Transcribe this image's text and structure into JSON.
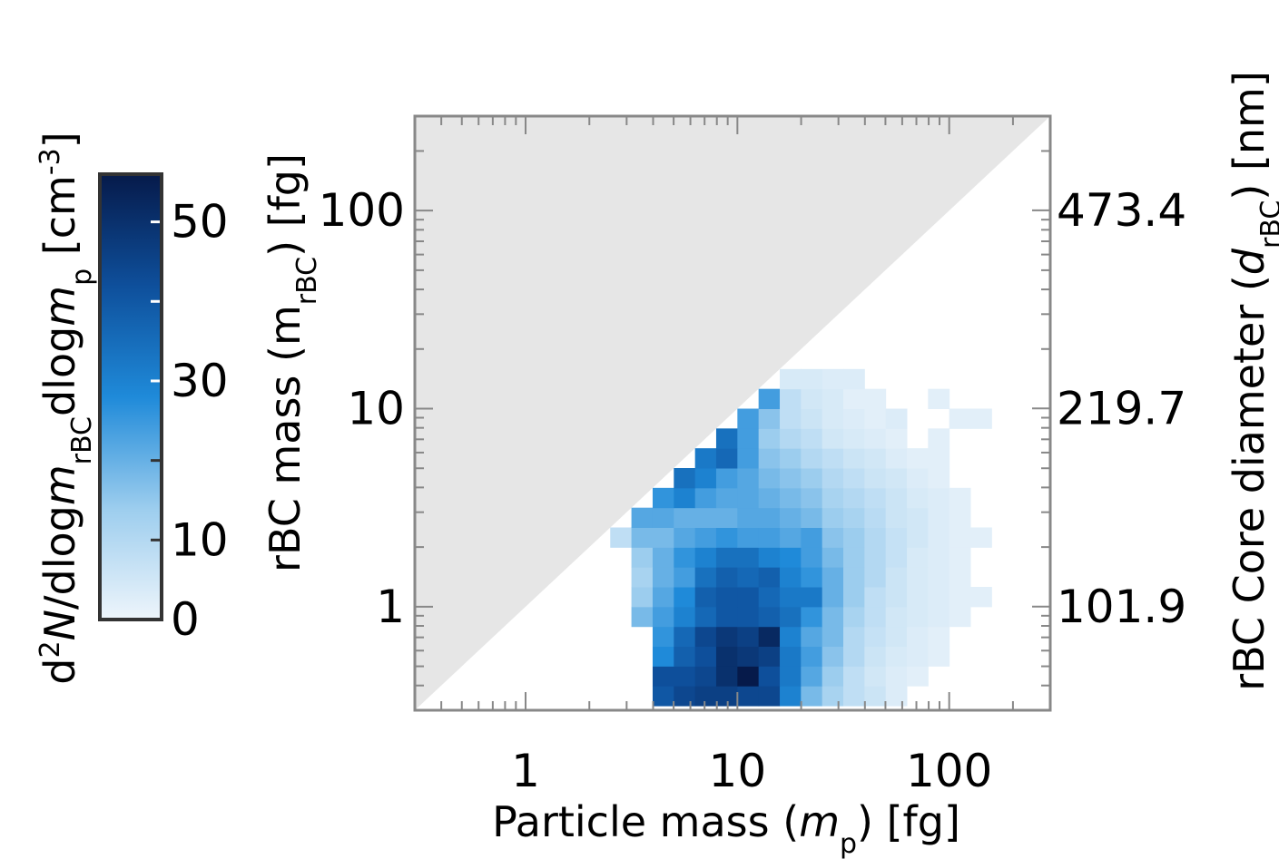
{
  "chart_data": {
    "type": "heatmap",
    "x_label": [
      "Particle mass (",
      "m",
      "p",
      ") [fg]"
    ],
    "y_label": [
      "rBC mass (m",
      "rBC",
      ") [fg]"
    ],
    "y2_label": [
      "rBC Core diameter (",
      "d",
      "rBC",
      ") [nm]"
    ],
    "colorbar_label": [
      "d",
      "2",
      "N",
      "/dlog",
      "m",
      "rBC",
      "dlog",
      "m",
      "p",
      " [cm",
      "-3",
      "]"
    ],
    "xscale": "log",
    "yscale": "log",
    "y2scale": "log",
    "xlim": [
      0.3,
      300
    ],
    "ylim": [
      0.3,
      300
    ],
    "y2lim": [
      68.2,
      682.1
    ],
    "xticks": [
      1,
      10,
      100
    ],
    "yticks": [
      1,
      10,
      100
    ],
    "y2ticks": [
      101.9,
      219.7,
      473.4
    ],
    "xminorticks": [
      0.4,
      0.5,
      0.6,
      0.7,
      0.8,
      0.9,
      2,
      3,
      4,
      5,
      6,
      7,
      8,
      9,
      20,
      30,
      40,
      50,
      60,
      70,
      80,
      90,
      200,
      300
    ],
    "yminorticks": [
      0.4,
      0.5,
      0.6,
      0.7,
      0.8,
      0.9,
      2,
      3,
      4,
      5,
      6,
      7,
      8,
      9,
      20,
      30,
      40,
      50,
      60,
      70,
      80,
      90,
      200,
      300
    ],
    "excluded_region_color": "#e6e6e6",
    "frame_color": "#888888",
    "clim": [
      0,
      56
    ],
    "cticks": [
      0,
      10,
      30,
      50
    ],
    "cminorticks": [
      20,
      40
    ],
    "colormap": [
      "#eef5fb",
      "#9ccdee",
      "#1f8ad9",
      "#0e4f9b",
      "#061a4a"
    ],
    "xbins": [
      2.51,
      3.16,
      3.98,
      5.01,
      6.31,
      7.94,
      10,
      12.59,
      15.85,
      19.95,
      25.12,
      31.62,
      39.81,
      50.12,
      63.1,
      79.43,
      100,
      125.9,
      158.5
    ],
    "ybins": [
      0.316,
      0.398,
      0.501,
      0.631,
      0.794,
      1,
      1.259,
      1.585,
      1.995,
      2.512,
      3.162,
      3.981,
      5.012,
      6.31,
      7.943,
      10,
      12.59,
      15.85
    ],
    "values": [
      [
        null,
        null,
        40,
        44,
        46,
        46,
        44,
        44,
        30,
        18,
        12,
        8,
        6,
        3,
        null,
        null,
        null,
        null
      ],
      [
        null,
        null,
        42,
        42,
        44,
        50,
        56,
        42,
        32,
        22,
        14,
        8,
        5,
        3,
        2,
        null,
        null,
        null
      ],
      [
        null,
        null,
        28,
        38,
        42,
        50,
        48,
        46,
        32,
        24,
        16,
        10,
        6,
        4,
        3,
        2,
        null,
        null
      ],
      [
        null,
        null,
        26,
        36,
        44,
        48,
        46,
        52,
        30,
        22,
        18,
        10,
        7,
        5,
        3,
        2,
        null,
        null
      ],
      [
        null,
        18,
        24,
        30,
        36,
        40,
        40,
        38,
        34,
        26,
        18,
        12,
        8,
        5,
        4,
        3,
        2,
        null
      ],
      [
        null,
        14,
        22,
        28,
        38,
        40,
        40,
        36,
        32,
        32,
        20,
        14,
        8,
        6,
        4,
        3,
        2,
        2
      ],
      [
        null,
        12,
        20,
        24,
        34,
        38,
        36,
        38,
        30,
        26,
        20,
        14,
        10,
        6,
        4,
        3,
        2,
        null
      ],
      [
        null,
        14,
        20,
        26,
        30,
        34,
        34,
        30,
        28,
        24,
        18,
        14,
        10,
        7,
        4,
        3,
        2,
        null
      ],
      [
        8,
        18,
        18,
        22,
        24,
        26,
        24,
        24,
        22,
        24,
        16,
        14,
        10,
        7,
        5,
        3,
        2,
        2
      ],
      [
        null,
        22,
        22,
        20,
        20,
        20,
        22,
        22,
        20,
        18,
        14,
        12,
        9,
        6,
        5,
        3,
        2,
        null
      ],
      [
        null,
        null,
        26,
        30,
        24,
        22,
        22,
        20,
        18,
        16,
        12,
        10,
        8,
        6,
        4,
        3,
        2,
        null
      ],
      [
        null,
        null,
        null,
        34,
        30,
        24,
        22,
        18,
        16,
        14,
        10,
        8,
        6,
        5,
        3,
        2,
        null,
        null
      ],
      [
        null,
        null,
        null,
        null,
        32,
        36,
        24,
        16,
        14,
        10,
        8,
        6,
        5,
        3,
        2,
        2,
        null,
        null
      ],
      [
        null,
        null,
        null,
        null,
        null,
        34,
        24,
        14,
        10,
        8,
        5,
        4,
        3,
        2,
        null,
        2,
        null,
        null
      ],
      [
        null,
        null,
        null,
        null,
        null,
        null,
        24,
        16,
        8,
        6,
        4,
        3,
        2,
        3,
        null,
        null,
        2,
        2
      ],
      [
        null,
        null,
        null,
        null,
        null,
        null,
        null,
        24,
        8,
        5,
        4,
        2,
        2,
        null,
        null,
        2,
        null,
        null
      ],
      [
        null,
        null,
        null,
        null,
        null,
        null,
        null,
        null,
        4,
        4,
        3,
        3,
        null,
        null,
        null,
        null,
        null,
        null
      ]
    ]
  }
}
